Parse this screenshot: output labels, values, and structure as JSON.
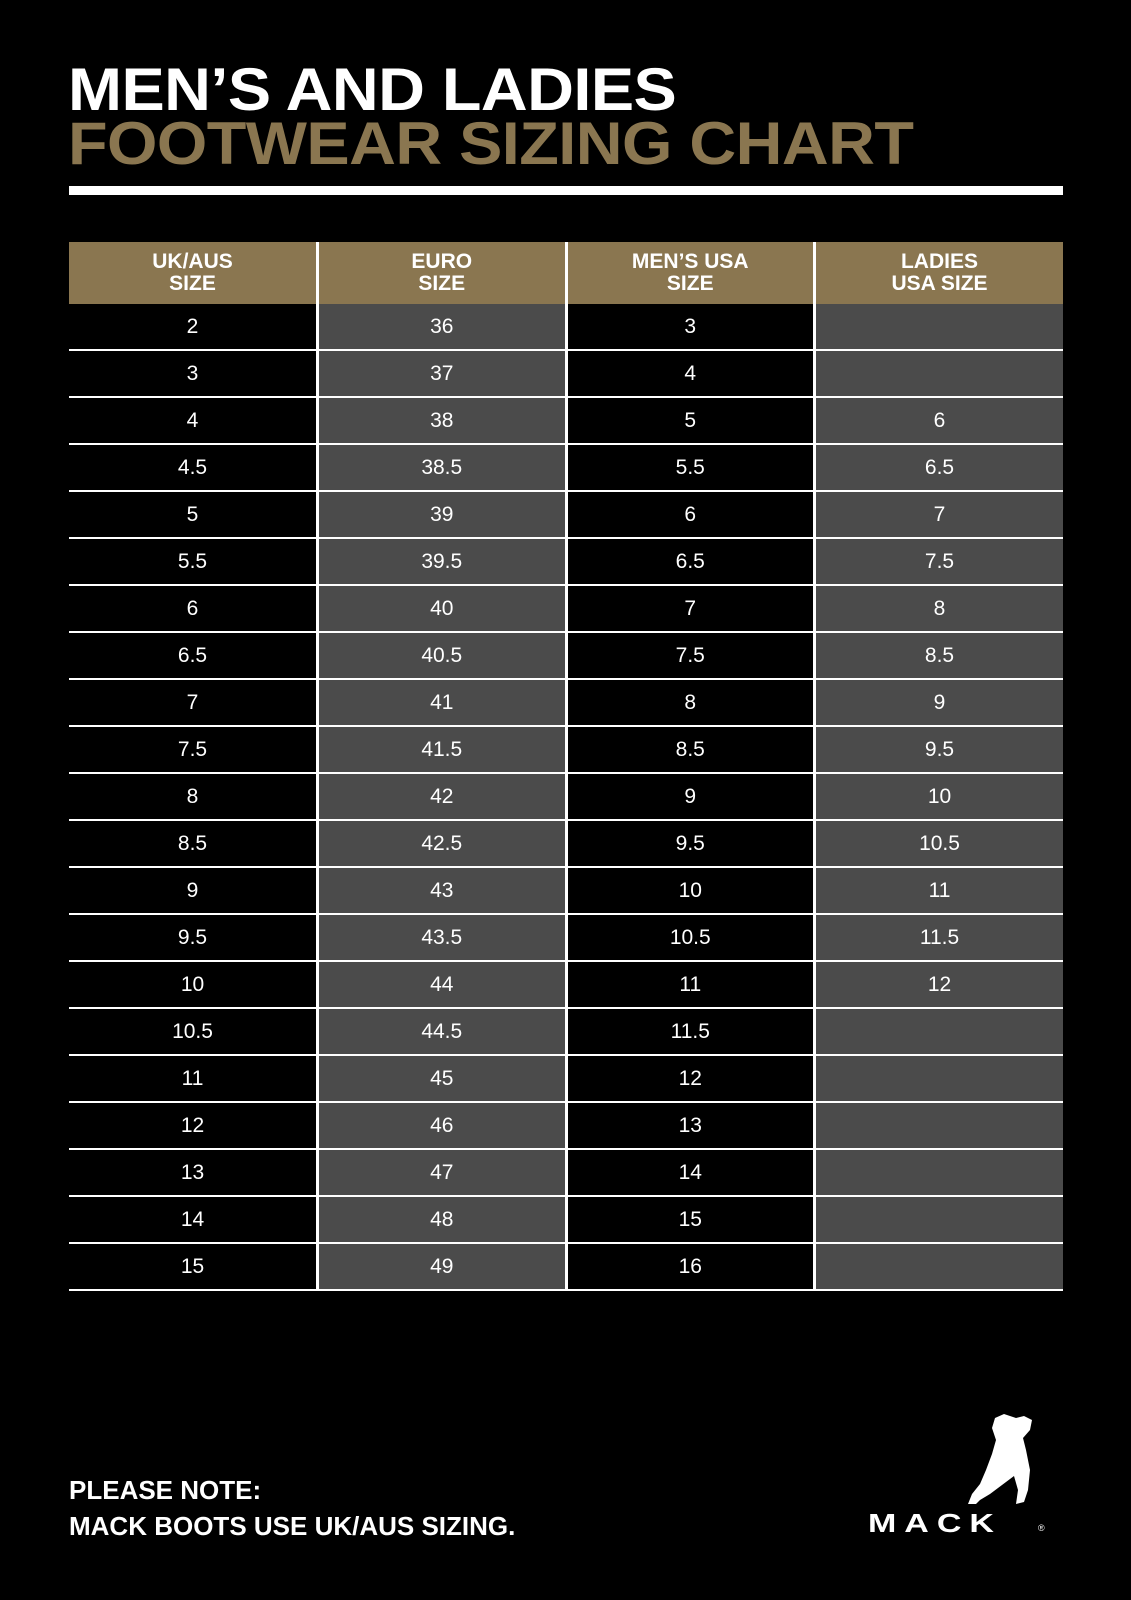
{
  "title": {
    "line1": "MEN’S AND LADIES",
    "line2": "FOOTWEAR SIZING CHART"
  },
  "colors": {
    "accent": "#8a7650",
    "shaded_column": "#4b4b4b",
    "background": "#000000"
  },
  "table": {
    "headers": [
      [
        "UK/AUS",
        "SIZE"
      ],
      [
        "EURO",
        "SIZE"
      ],
      [
        "MEN’S USA",
        "SIZE"
      ],
      [
        "LADIES",
        "USA SIZE"
      ]
    ],
    "rows": [
      [
        "2",
        "36",
        "3",
        ""
      ],
      [
        "3",
        "37",
        "4",
        ""
      ],
      [
        "4",
        "38",
        "5",
        "6"
      ],
      [
        "4.5",
        "38.5",
        "5.5",
        "6.5"
      ],
      [
        "5",
        "39",
        "6",
        "7"
      ],
      [
        "5.5",
        "39.5",
        "6.5",
        "7.5"
      ],
      [
        "6",
        "40",
        "7",
        "8"
      ],
      [
        "6.5",
        "40.5",
        "7.5",
        "8.5"
      ],
      [
        "7",
        "41",
        "8",
        "9"
      ],
      [
        "7.5",
        "41.5",
        "8.5",
        "9.5"
      ],
      [
        "8",
        "42",
        "9",
        "10"
      ],
      [
        "8.5",
        "42.5",
        "9.5",
        "10.5"
      ],
      [
        "9",
        "43",
        "10",
        "11"
      ],
      [
        "9.5",
        "43.5",
        "10.5",
        "11.5"
      ],
      [
        "10",
        "44",
        "11",
        "12"
      ],
      [
        "10.5",
        "44.5",
        "11.5",
        ""
      ],
      [
        "11",
        "45",
        "12",
        ""
      ],
      [
        "12",
        "46",
        "13",
        ""
      ],
      [
        "13",
        "47",
        "14",
        ""
      ],
      [
        "14",
        "48",
        "15",
        ""
      ],
      [
        "15",
        "49",
        "16",
        ""
      ]
    ]
  },
  "note": {
    "line1": "PLEASE NOTE:",
    "line2": "MACK BOOTS USE UK/AUS SIZING."
  },
  "logo": {
    "text": "MACK",
    "icon": "bulldog-icon"
  }
}
